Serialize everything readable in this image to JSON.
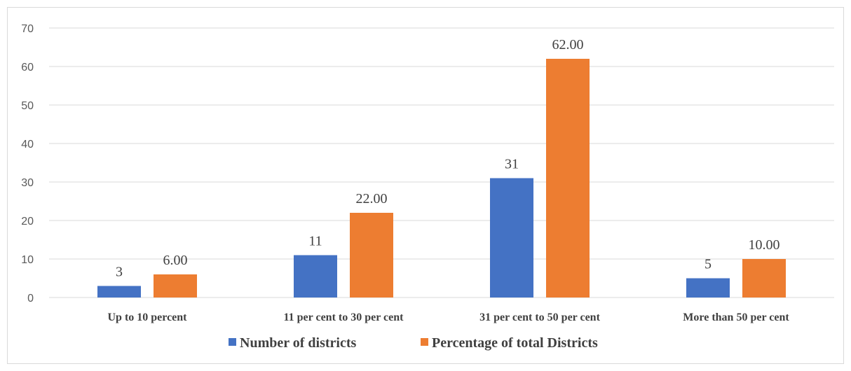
{
  "chart_data": {
    "type": "bar",
    "categories": [
      "Up to 10 percent",
      "11 per cent to 30 per cent",
      "31 per cent to 50 per cent",
      "More than 50 per cent"
    ],
    "series": [
      {
        "name": "Number of districts",
        "values": [
          3,
          11,
          31,
          5
        ],
        "labels": [
          "3",
          "11",
          "31",
          "5"
        ],
        "color": "#4472c4"
      },
      {
        "name": "Percentage of total Districts",
        "values": [
          6.0,
          22.0,
          62.0,
          10.0
        ],
        "labels": [
          "6.00",
          "22.00",
          "62.00",
          "10.00"
        ],
        "color": "#ed7d31"
      }
    ],
    "ylim": [
      0,
      70
    ],
    "yticks": [
      0,
      10,
      20,
      30,
      40,
      50,
      60,
      70
    ],
    "grid": true,
    "legend_position": "bottom"
  }
}
